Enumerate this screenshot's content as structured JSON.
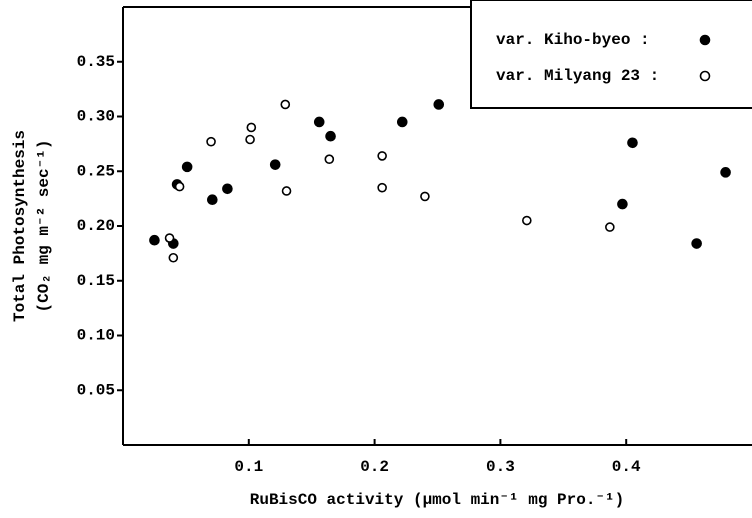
{
  "chart_data": {
    "type": "scatter",
    "xlabel": "RuBisCO activity (μmol min⁻¹ mg Pro.⁻¹)",
    "ylabel": [
      "Total Photosynthesis",
      "(CO₂ mg m⁻² sec⁻¹)"
    ],
    "xlim": [
      0,
      0.5
    ],
    "ylim": [
      0,
      0.4
    ],
    "xticks": [
      0.1,
      0.2,
      0.3,
      0.4
    ],
    "yticks": [
      0.05,
      {
        "value": 0.1,
        "label": "0.10"
      },
      0.15,
      {
        "value": 0.2,
        "label": "0.20"
      },
      0.25,
      {
        "value": 0.3,
        "label": "0.30"
      },
      0.35
    ],
    "legend": "upper right",
    "grid": false,
    "series": [
      {
        "name": "var. Kiho-byeo :",
        "color": "#000",
        "marker": "filled",
        "x": [
          0.025,
          0.043,
          0.04,
          0.051,
          0.071,
          0.083,
          0.121,
          0.156,
          0.165,
          0.222,
          0.251,
          0.397,
          0.405,
          0.456,
          0.479
        ],
        "values": [
          0.187,
          0.238,
          0.184,
          0.254,
          0.224,
          0.234,
          0.256,
          0.295,
          0.282,
          0.295,
          0.311,
          0.22,
          0.276,
          0.184,
          0.249
        ]
      },
      {
        "name": "var. Milyang 23 :",
        "color": "#000",
        "marker": "open",
        "x": [
          0.037,
          0.045,
          0.04,
          0.07,
          0.102,
          0.101,
          0.129,
          0.13,
          0.164,
          0.206,
          0.206,
          0.24,
          0.321,
          0.387
        ],
        "values": [
          0.189,
          0.236,
          0.171,
          0.277,
          0.29,
          0.279,
          0.311,
          0.232,
          0.261,
          0.264,
          0.235,
          0.227,
          0.205,
          0.199
        ]
      }
    ]
  }
}
